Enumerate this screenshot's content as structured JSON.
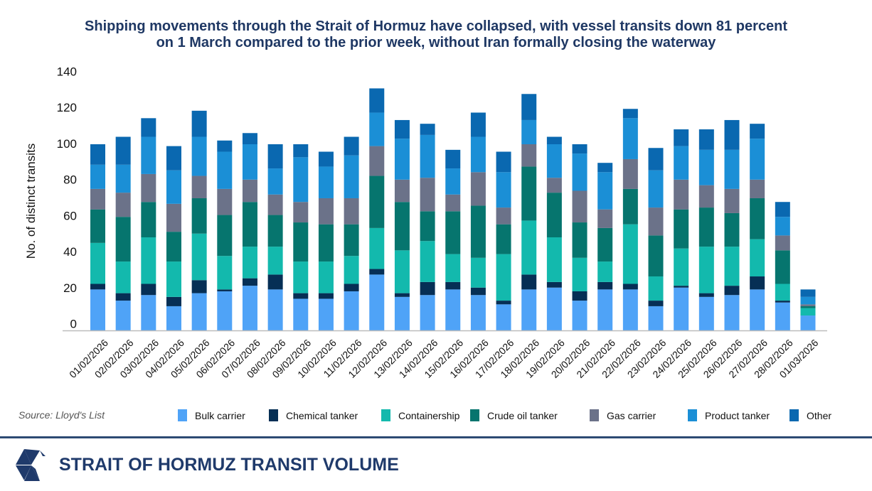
{
  "title": {
    "line1": "Shipping movements through the Strait of Hormuz have collapsed, with vessel transits down 81 percent",
    "line2": "on 1 March compared to the prior week, without Iran formally closing the waterway"
  },
  "source": "Source: Lloyd's List",
  "footer": {
    "title": "STRAIT OF HORMUZ TRANSIT VOLUME",
    "logo": "triangle-mark-logo"
  },
  "colors": {
    "title": "#1f3864",
    "footer": "#1f3a6b",
    "divider": "#2d4a73"
  },
  "chart_data": {
    "type": "bar",
    "stacked": true,
    "title": "Shipping movements through the Strait of Hormuz have collapsed, with vessel transits down 81 percent on 1 March compared to the prior week, without Iran formally closing the waterway",
    "xlabel": "",
    "ylabel": "No. of distinct transits",
    "ylim": [
      0,
      140
    ],
    "yticks": [
      "0",
      "20",
      "40",
      "60",
      "80",
      "100",
      "120",
      "140"
    ],
    "ytick_values": [
      0,
      20,
      40,
      60,
      80,
      100,
      120,
      140
    ],
    "grid": false,
    "legend_position": "bottom",
    "categories": [
      "01/02/2026",
      "02/02/2026",
      "03/02/2026",
      "04/02/2026",
      "05/02/2026",
      "06/02/2026",
      "07/02/2026",
      "08/02/2026",
      "09/02/2026",
      "10/02/2026",
      "11/02/2026",
      "12/02/2026",
      "13/02/2026",
      "14/02/2026",
      "15/02/2026",
      "16/02/2026",
      "17/02/2026",
      "18/02/2026",
      "19/02/2026",
      "20/02/2026",
      "21/02/2026",
      "22/02/2026",
      "23/02/2026",
      "24/02/2026",
      "25/02/2026",
      "26/02/2026",
      "27/02/2026",
      "28/02/2026",
      "01/03/2026"
    ],
    "series": [
      {
        "name": "Bulk carrier",
        "color": "#4fa3f7",
        "values": [
          22,
          16,
          19,
          13,
          20,
          21,
          24,
          22,
          17,
          17,
          21,
          30,
          18,
          19,
          22,
          19,
          14,
          22,
          23,
          16,
          22,
          22,
          13,
          23,
          18,
          19,
          22,
          15,
          8
        ]
      },
      {
        "name": "Chemical tanker",
        "color": "#062f55",
        "values": [
          3,
          4,
          6,
          5,
          7,
          1,
          4,
          8,
          3,
          3,
          4,
          3,
          2,
          7,
          4,
          4,
          2,
          8,
          3,
          5,
          4,
          3,
          3,
          1,
          2,
          5,
          7,
          1,
          0
        ]
      },
      {
        "name": "Containership",
        "color": "#13b9ad",
        "values": [
          22,
          17,
          25,
          19,
          25,
          18,
          17,
          15,
          17,
          17,
          15,
          22,
          23,
          22,
          15,
          16,
          25,
          29,
          24,
          18,
          11,
          32,
          13,
          20,
          25,
          21,
          20,
          9,
          4
        ]
      },
      {
        "name": "Crude oil tanker",
        "color": "#06756e",
        "values": [
          18,
          24,
          19,
          16,
          19,
          22,
          24,
          17,
          21,
          20,
          17,
          28,
          26,
          16,
          23,
          28,
          16,
          29,
          24,
          19,
          18,
          19,
          22,
          21,
          21,
          18,
          22,
          18,
          1
        ]
      },
      {
        "name": "Gas carrier",
        "color": "#6b7289",
        "values": [
          11,
          13,
          15,
          15,
          12,
          14,
          12,
          11,
          11,
          14,
          14,
          16,
          12,
          18,
          9,
          18,
          9,
          12,
          8,
          17,
          10,
          16,
          15,
          16,
          12,
          13,
          10,
          8,
          1
        ]
      },
      {
        "name": "Product tanker",
        "color": "#1b8fd6",
        "values": [
          13,
          15,
          20,
          18,
          21,
          20,
          19,
          14,
          24,
          17,
          23,
          18,
          22,
          23,
          14,
          19,
          19,
          13,
          18,
          20,
          20,
          22,
          20,
          18,
          19,
          21,
          22,
          10,
          4
        ]
      },
      {
        "name": "Other",
        "color": "#0a68b0",
        "values": [
          11,
          15,
          10,
          13,
          14,
          6,
          6,
          13,
          7,
          8,
          10,
          13,
          10,
          6,
          10,
          13,
          11,
          14,
          4,
          5,
          5,
          5,
          12,
          9,
          11,
          16,
          8,
          8,
          4
        ]
      }
    ]
  }
}
